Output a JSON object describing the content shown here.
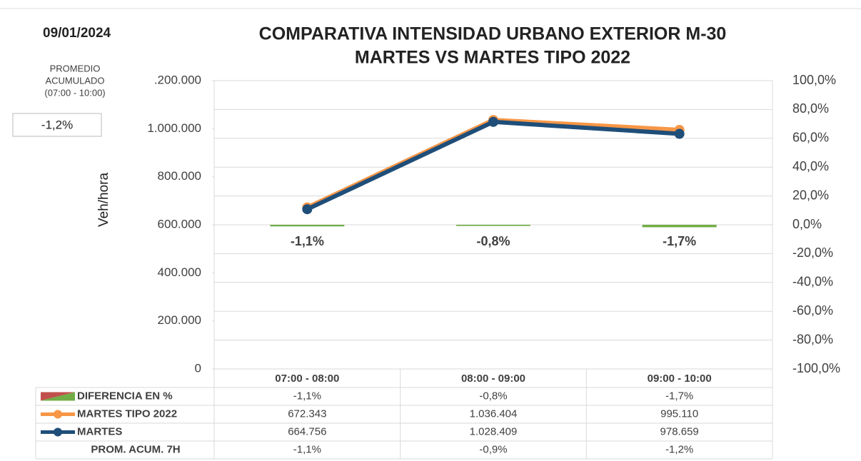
{
  "date": "09/01/2024",
  "summary": {
    "label_lines": [
      "PROMEDIO",
      "ACUMULADO",
      "(07:00 - 10:00)"
    ],
    "value_text": "-1,2%"
  },
  "chart_data": {
    "type": "line",
    "title": "COMPARATIVA INTENSIDAD URBANO EXTERIOR M-30",
    "subtitle": "MARTES VS MARTES TIPO 2022",
    "y_label": "Veh/hora",
    "categories": [
      "07:00 - 08:00",
      "08:00 - 09:00",
      "09:00 - 10:00"
    ],
    "ylim": [
      0,
      1200000
    ],
    "yticks": [
      0,
      {
        "value": 200000,
        "label": "200.000"
      },
      {
        "value": 400000,
        "label": "400.000"
      },
      {
        "value": 600000,
        "label": "600.000"
      },
      {
        "value": 800000,
        "label": "800.000"
      },
      {
        "value": 1000000,
        "label": "1.000.000"
      },
      {
        "value": 1200000,
        "label": ".200.000"
      }
    ],
    "y2lim": [
      -100,
      100
    ],
    "y2ticks": [
      {
        "value": -100,
        "label": "-100,0%"
      },
      {
        "value": -80,
        "label": "-80,0%"
      },
      {
        "value": -60,
        "label": "-60,0%"
      },
      {
        "value": -40,
        "label": "-40,0%"
      },
      {
        "value": -20,
        "label": "-20,0%"
      },
      {
        "value": 0,
        "label": "0,0%"
      },
      {
        "value": 20,
        "label": "20,0%"
      },
      {
        "value": 40,
        "label": "40,0%"
      },
      {
        "value": 60,
        "label": "60,0%"
      },
      {
        "value": 80,
        "label": "80,0%"
      },
      {
        "value": 100,
        "label": "100,0%"
      }
    ],
    "grid": true,
    "series": [
      {
        "name": "DIFERENCIA EN %",
        "type": "bar",
        "axis": "y2",
        "color": "#70ad47",
        "values": [
          -1.1,
          -0.8,
          -1.7
        ],
        "value_labels": [
          "-1,1%",
          "-0,8%",
          "-1,7%"
        ]
      },
      {
        "name": "MARTES TIPO 2022",
        "type": "line",
        "color": "#f79646",
        "values": [
          672343,
          1036404,
          995110
        ],
        "value_labels": [
          "672.343",
          "1.036.404",
          "995.110"
        ]
      },
      {
        "name": "MARTES",
        "type": "line",
        "color": "#1f4e79",
        "values": [
          664756,
          1028409,
          978659
        ],
        "value_labels": [
          "664.756",
          "1.028.409",
          "978.659"
        ]
      }
    ],
    "table_rows": [
      {
        "name": "PROM. ACUM. 7H",
        "cells": [
          "-1,1%",
          "-0,9%",
          "-1,2%"
        ]
      }
    ]
  }
}
